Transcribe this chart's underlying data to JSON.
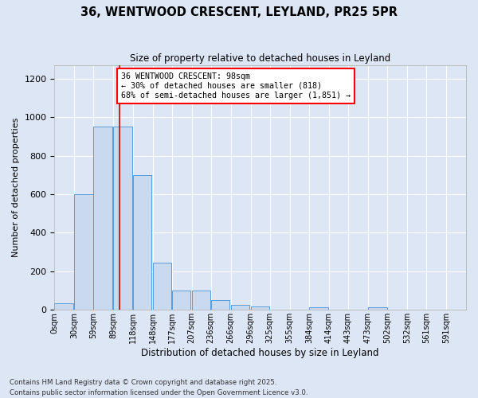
{
  "title": "36, WENTWOOD CRESCENT, LEYLAND, PR25 5PR",
  "subtitle": "Size of property relative to detached houses in Leyland",
  "xlabel": "Distribution of detached houses by size in Leyland",
  "ylabel": "Number of detached properties",
  "bar_color": "#c9d9ee",
  "bar_edge_color": "#5b9bd5",
  "background_color": "#dce6f5",
  "fig_background_color": "#dce6f5",
  "grid_color": "#ffffff",
  "annotation_text": "36 WENTWOOD CRESCENT: 98sqm\n← 30% of detached houses are smaller (818)\n68% of semi-detached houses are larger (1,851) →",
  "vline_value": 98,
  "vline_color": "#cc0000",
  "bins_start": [
    0,
    30,
    59,
    89,
    118,
    148,
    177,
    207,
    236,
    266,
    296,
    325,
    355,
    384,
    414,
    443,
    473,
    502,
    532,
    561,
    591
  ],
  "bar_heights": [
    35,
    600,
    950,
    950,
    700,
    245,
    100,
    100,
    50,
    25,
    18,
    0,
    0,
    12,
    0,
    0,
    12,
    0,
    0,
    0,
    0
  ],
  "ylim": [
    0,
    1270
  ],
  "yticks": [
    0,
    200,
    400,
    600,
    800,
    1000,
    1200
  ],
  "xlim": [
    0,
    621
  ],
  "footnote": "Contains HM Land Registry data © Crown copyright and database right 2025.\nContains public sector information licensed under the Open Government Licence v3.0.",
  "bin_width": 29
}
